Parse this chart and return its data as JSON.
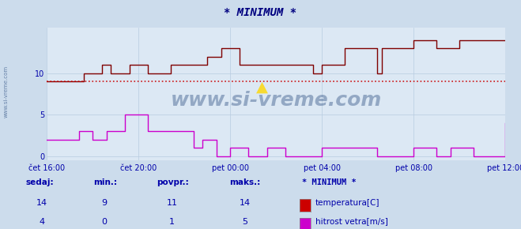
{
  "title": "* MINIMUM *",
  "bg_color": "#ccdcec",
  "plot_bg_color": "#dce8f4",
  "grid_color": "#b8cce0",
  "title_color": "#000080",
  "axis_label_color": "#0000aa",
  "watermark": "www.si-vreme.com",
  "xlabel_ticks": [
    "čet 16:00",
    "čet 20:00",
    "pet 00:00",
    "pet 04:00",
    "pet 08:00",
    "pet 12:00"
  ],
  "ylim": [
    -0.5,
    15.5
  ],
  "ytick_vals": [
    0,
    5,
    10
  ],
  "temp_color": "#800000",
  "wind_color": "#cc00cc",
  "avg_line_color": "#cc0000",
  "avg_temp": 9,
  "legend_title": "* MINIMUM *",
  "legend_entries": [
    {
      "label": "temperatura[C]",
      "color": "#cc0000",
      "sedaj": 14,
      "min": 9,
      "povpr": 11,
      "maks": 14
    },
    {
      "label": "hitrost vetra[m/s]",
      "color": "#cc00cc",
      "sedaj": 4,
      "min": 0,
      "povpr": 1,
      "maks": 5
    }
  ],
  "temp_x": [
    0.0,
    0.02,
    0.08,
    0.12,
    0.14,
    0.18,
    0.22,
    0.27,
    0.35,
    0.38,
    0.42,
    0.58,
    0.6,
    0.65,
    0.72,
    0.73,
    0.8,
    0.85,
    0.9,
    1.0
  ],
  "temp_y": [
    9,
    9,
    10,
    11,
    10,
    11,
    10,
    11,
    12,
    13,
    11,
    10,
    11,
    13,
    10,
    13,
    14,
    13,
    14,
    14
  ],
  "wind_x": [
    0.0,
    0.04,
    0.07,
    0.1,
    0.13,
    0.17,
    0.22,
    0.32,
    0.34,
    0.37,
    0.4,
    0.44,
    0.48,
    0.52,
    0.6,
    0.72,
    0.8,
    0.85,
    0.88,
    0.93,
    1.0
  ],
  "wind_y": [
    2,
    2,
    3,
    2,
    3,
    5,
    3,
    1,
    2,
    0,
    1,
    0,
    1,
    0,
    1,
    0,
    1,
    0,
    1,
    0,
    4
  ]
}
